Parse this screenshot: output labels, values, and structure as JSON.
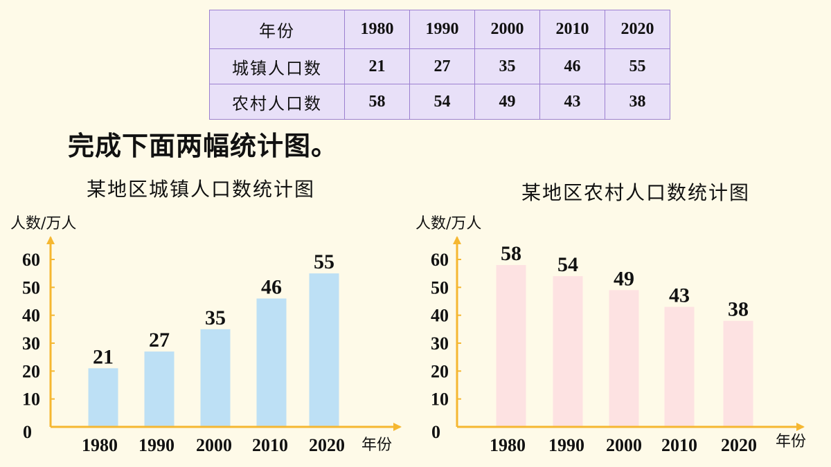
{
  "table": {
    "header_label": "年份",
    "years": [
      "1980",
      "1990",
      "2000",
      "2010",
      "2020"
    ],
    "rows": [
      {
        "label": "城镇人口数",
        "values": [
          "21",
          "27",
          "35",
          "46",
          "55"
        ]
      },
      {
        "label": "农村人口数",
        "values": [
          "58",
          "54",
          "49",
          "43",
          "38"
        ]
      }
    ]
  },
  "instruction": "完成下面两幅统计图。",
  "chart_data": [
    {
      "type": "bar",
      "title": "某地区城镇人口数统计图",
      "ylabel": "人数/万人",
      "xlabel": "年份",
      "categories": [
        "1980",
        "1990",
        "2000",
        "2010",
        "2020"
      ],
      "values": [
        21,
        27,
        35,
        46,
        55
      ],
      "yticks": [
        0,
        10,
        20,
        30,
        40,
        50,
        60
      ],
      "ylim": [
        0,
        60
      ],
      "bar_color": "#bde0f5",
      "axis_color": "#f5b731",
      "grid": false
    },
    {
      "type": "bar",
      "title": "某地区农村人口数统计图",
      "ylabel": "人数/万人",
      "xlabel": "年份",
      "categories": [
        "1980",
        "1990",
        "2000",
        "2010",
        "2020"
      ],
      "values": [
        58,
        54,
        49,
        43,
        38
      ],
      "yticks": [
        0,
        10,
        20,
        30,
        40,
        50,
        60
      ],
      "ylim": [
        0,
        60
      ],
      "bar_color": "#fde2e2",
      "axis_color": "#f5b731",
      "grid": false
    }
  ]
}
